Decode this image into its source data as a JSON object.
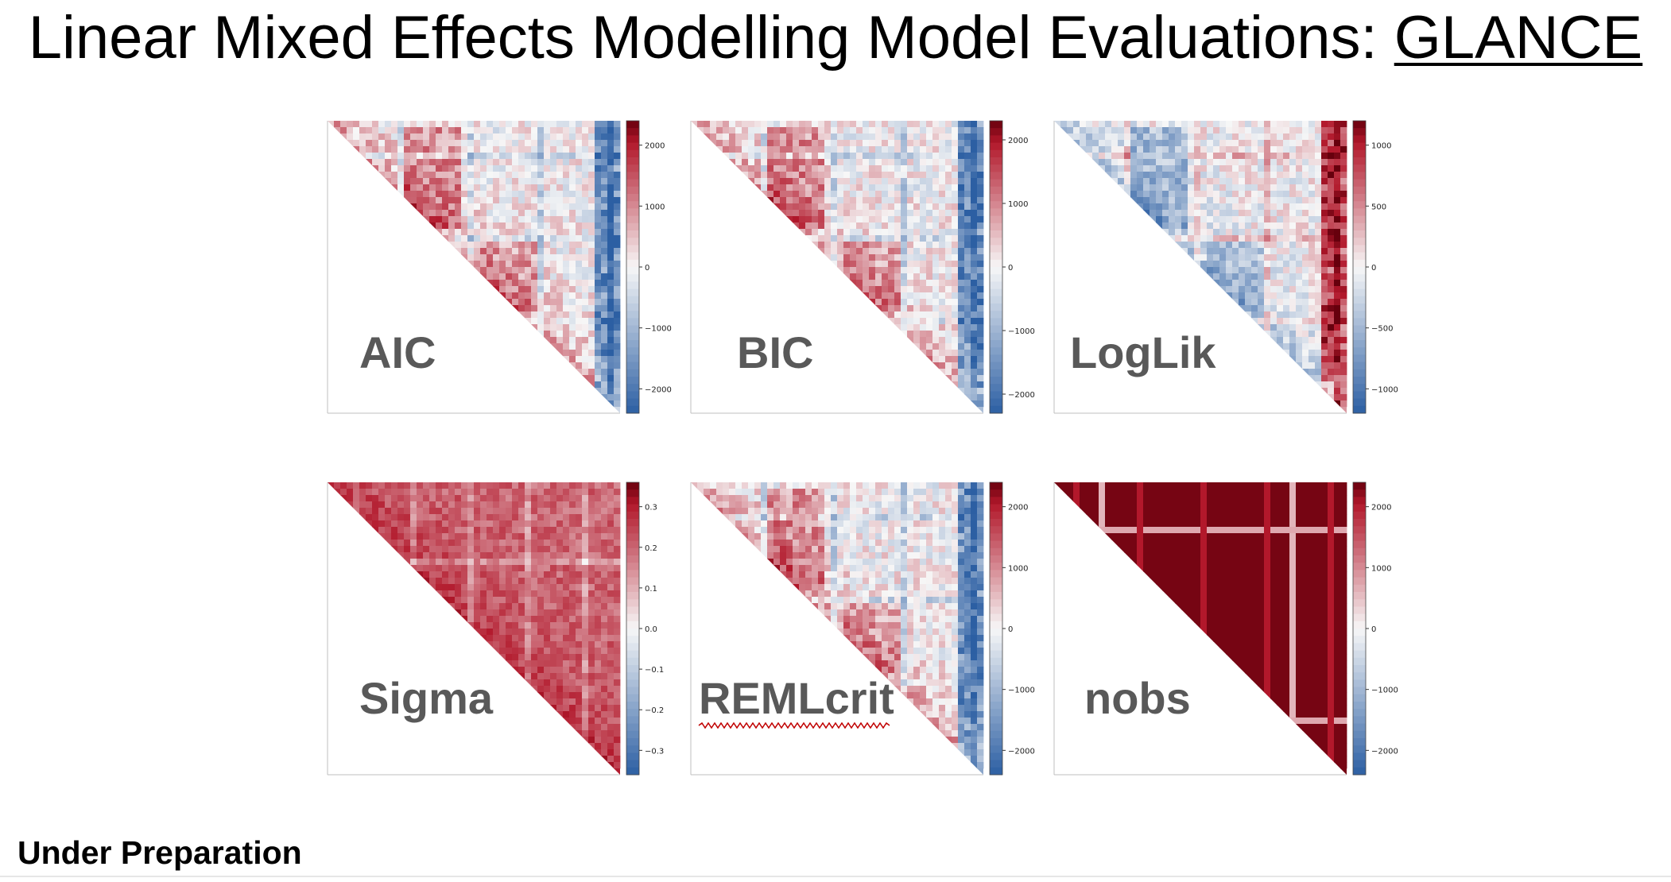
{
  "slide": {
    "title_main": "Linear Mixed Effects Modelling Model Evaluations: ",
    "title_link": "GLANCE",
    "footer_note": "Under Preparation"
  },
  "colors": {
    "cmap_low": "#2c5fa3",
    "cmap_mid": "#f7f7f7",
    "cmap_high": "#b2182b",
    "label_gray": "#595959"
  },
  "chart_data": [
    {
      "type": "heatmap",
      "label": "AIC",
      "shape": "upper-triangle",
      "colorbar_ticks": [
        2000,
        1000,
        0,
        -1000,
        -2000
      ],
      "colorbar_tick_labels": [
        "2000",
        "1000",
        "0",
        "−1000",
        "−2000"
      ],
      "vlim": [
        -2400,
        2400
      ],
      "colormap": "RdBu_r"
    },
    {
      "type": "heatmap",
      "label": "BIC",
      "shape": "upper-triangle",
      "colorbar_ticks": [
        2000,
        1000,
        0,
        -1000,
        -2000
      ],
      "colorbar_tick_labels": [
        "2000",
        "1000",
        "0",
        "−1000",
        "−2000"
      ],
      "vlim": [
        -2300,
        2300
      ],
      "colormap": "RdBu_r"
    },
    {
      "type": "heatmap",
      "label": "LogLik",
      "shape": "upper-triangle",
      "colorbar_ticks": [
        1000,
        500,
        0,
        -500,
        -1000
      ],
      "colorbar_tick_labels": [
        "1000",
        "500",
        "0",
        "−500",
        "−1000"
      ],
      "vlim": [
        -1200,
        1200
      ],
      "colormap": "RdBu_r"
    },
    {
      "type": "heatmap",
      "label": "Sigma",
      "shape": "upper-triangle",
      "colorbar_ticks": [
        0.3,
        0.2,
        0.1,
        0.0,
        -0.1,
        -0.2,
        -0.3
      ],
      "colorbar_tick_labels": [
        "0.3",
        "0.2",
        "0.1",
        "0.0",
        "−0.1",
        "−0.2",
        "−0.3"
      ],
      "vlim": [
        -0.36,
        0.36
      ],
      "colormap": "RdBu_r"
    },
    {
      "type": "heatmap",
      "label": "REMLcrit",
      "shape": "upper-triangle",
      "colorbar_ticks": [
        2000,
        1000,
        0,
        -1000,
        -2000
      ],
      "colorbar_tick_labels": [
        "2000",
        "1000",
        "0",
        "−1000",
        "−2000"
      ],
      "vlim": [
        -2400,
        2400
      ],
      "colormap": "RdBu_r"
    },
    {
      "type": "heatmap",
      "label": "nobs",
      "shape": "upper-triangle",
      "colorbar_ticks": [
        2000,
        1000,
        0,
        -1000,
        -2000
      ],
      "colorbar_tick_labels": [
        "2000",
        "1000",
        "0",
        "−1000",
        "−2000"
      ],
      "vlim": [
        -2400,
        2400
      ],
      "colormap": "RdBu_r"
    }
  ]
}
